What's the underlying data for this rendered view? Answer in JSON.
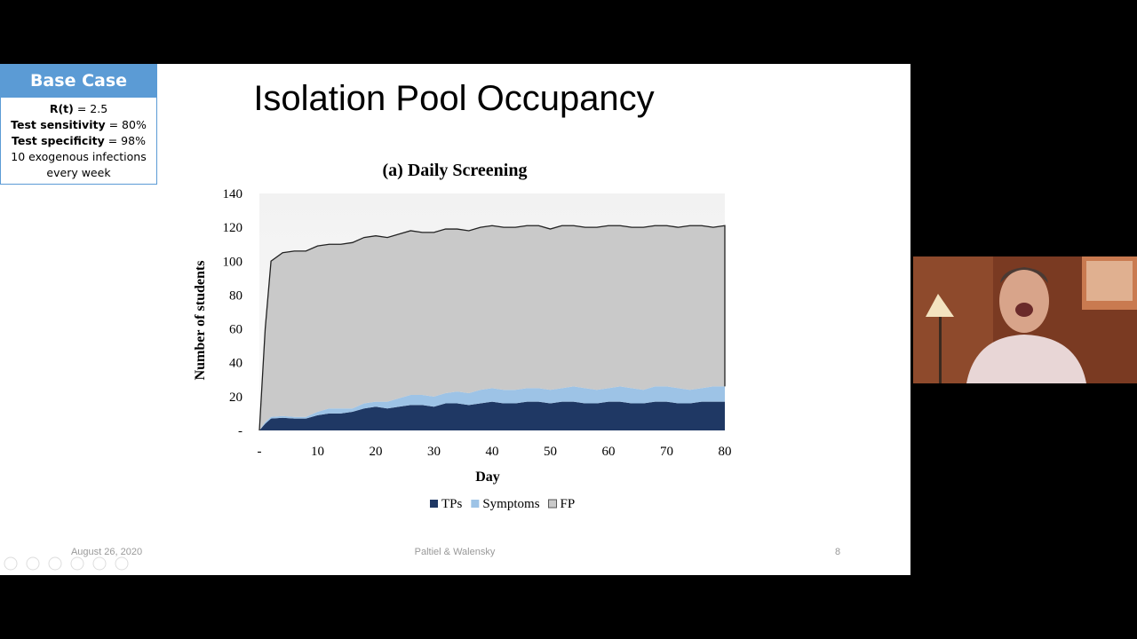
{
  "base_case": {
    "title": "Base Case",
    "lines": [
      {
        "bold": "R(t)",
        "text": " = 2.5"
      },
      {
        "bold": "Test sensitivity",
        "text": " = 80%"
      },
      {
        "bold": "Test specificity",
        "text": " = 98%"
      },
      {
        "text": "10 exogenous infections every week"
      }
    ]
  },
  "slide_title": "Isolation Pool Occupancy",
  "chart_data": {
    "type": "stacked-area",
    "title": "(a) Daily Screening",
    "x_label": "Day",
    "y_label": "Number of students",
    "x": [
      0,
      1,
      2,
      4,
      6,
      8,
      10,
      12,
      14,
      16,
      18,
      20,
      22,
      24,
      26,
      28,
      30,
      32,
      34,
      36,
      38,
      40,
      42,
      44,
      46,
      48,
      50,
      52,
      54,
      56,
      58,
      60,
      62,
      64,
      66,
      68,
      70,
      72,
      74,
      76,
      78,
      80
    ],
    "series": [
      {
        "name": "TPs",
        "color": "#1f3864",
        "values": [
          0,
          4,
          7,
          7.5,
          7,
          7,
          9,
          10,
          10,
          11,
          13,
          14,
          13,
          14,
          15,
          15,
          14,
          16,
          16,
          15,
          16,
          17,
          16,
          16,
          17,
          17,
          16,
          17,
          17,
          16,
          16,
          17,
          17,
          16,
          16,
          17,
          17,
          16,
          16,
          17,
          17,
          17
        ]
      },
      {
        "name": "Symptoms",
        "color": "#9dc3e6",
        "values": [
          0,
          1,
          1,
          1,
          1,
          1,
          2,
          3,
          3,
          2,
          3,
          3,
          4,
          5,
          6,
          6,
          6,
          6,
          7,
          7,
          8,
          8,
          8,
          8,
          8,
          8,
          8,
          8,
          9,
          9,
          8,
          8,
          9,
          9,
          8,
          9,
          9,
          9,
          8,
          8,
          9,
          9
        ]
      },
      {
        "name": "FP",
        "color": "#c9c9c9",
        "values": [
          0,
          55,
          92,
          96.5,
          98,
          98,
          98,
          97,
          97,
          98,
          98,
          98,
          97,
          97,
          97,
          96,
          97,
          97,
          96,
          96,
          96,
          96,
          96,
          96,
          96,
          96,
          95,
          96,
          95,
          95,
          96,
          96,
          95,
          95,
          96,
          95,
          95,
          95,
          97,
          96,
          94,
          95
        ]
      }
    ],
    "xlim": [
      0,
      80
    ],
    "xticks": [
      {
        "value": 0,
        "label": "-"
      },
      10,
      20,
      30,
      40,
      50,
      60,
      70,
      80
    ],
    "ylim": [
      0,
      140
    ],
    "yticks": [
      {
        "value": 0,
        "label": "-"
      },
      20,
      40,
      60,
      80,
      100,
      120,
      140
    ],
    "legend": "bottom"
  },
  "footer": {
    "date": "August 26, 2020",
    "authors": "Paltiel & Walensky",
    "page": "8"
  }
}
